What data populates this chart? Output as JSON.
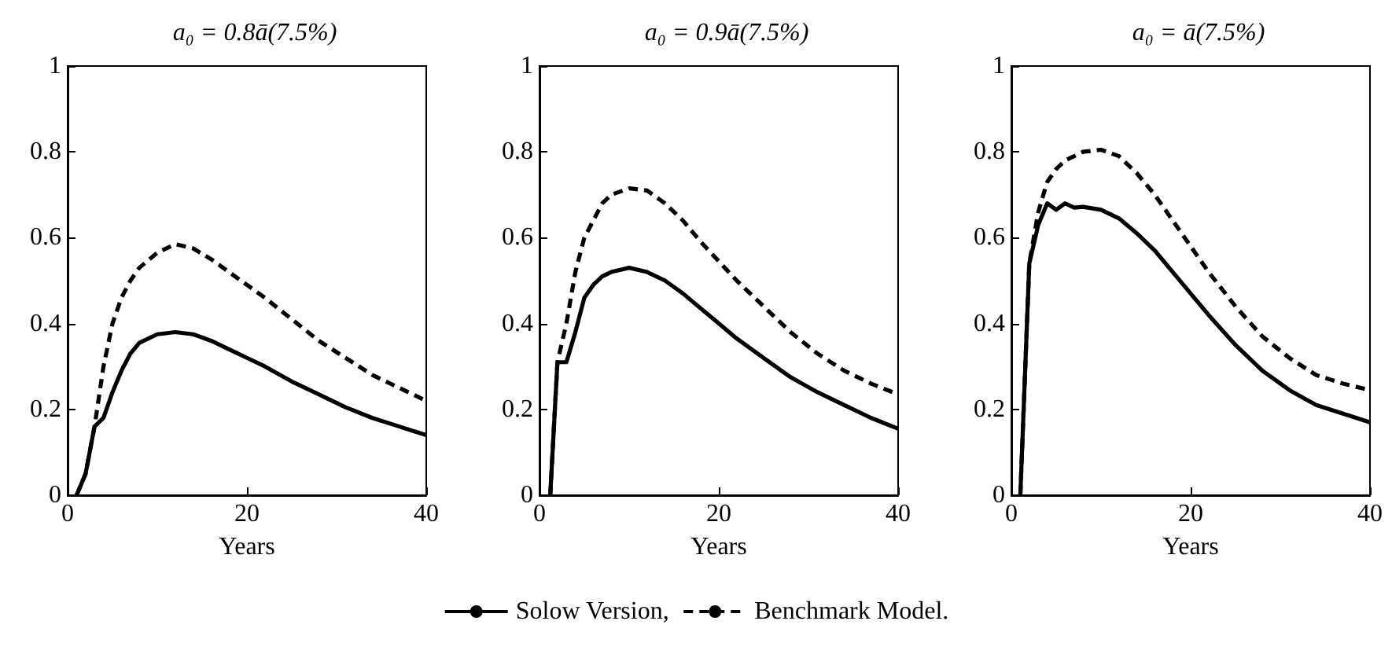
{
  "chart_data": [
    {
      "type": "line",
      "title": "a₀ = 0.8ā(7.5%)",
      "xlabel": "Years",
      "xlim": [
        0,
        40
      ],
      "xticks": [
        0,
        20,
        40
      ],
      "ylim": [
        0,
        1
      ],
      "yticks": [
        0,
        0.2,
        0.4,
        0.6,
        0.8,
        1
      ],
      "grid": false,
      "marker": "none",
      "series": [
        {
          "color": "#000000",
          "line_style": "solid",
          "x": [
            1,
            2,
            3,
            4,
            5,
            6,
            7,
            8,
            10,
            12,
            14,
            16,
            18,
            20,
            22,
            25,
            28,
            31,
            34,
            37,
            40
          ],
          "values": [
            0,
            0.05,
            0.16,
            0.18,
            0.24,
            0.29,
            0.33,
            0.355,
            0.375,
            0.38,
            0.375,
            0.36,
            0.34,
            0.32,
            0.3,
            0.265,
            0.235,
            0.205,
            0.18,
            0.16,
            0.14
          ]
        },
        {
          "color": "#000000",
          "line_style": "dashed",
          "x": [
            1,
            2,
            3,
            4,
            5,
            6,
            7,
            8,
            10,
            12,
            14,
            16,
            18,
            20,
            22,
            25,
            28,
            31,
            34,
            37,
            40
          ],
          "values": [
            0,
            0.05,
            0.16,
            0.3,
            0.4,
            0.46,
            0.5,
            0.53,
            0.565,
            0.585,
            0.575,
            0.55,
            0.52,
            0.49,
            0.46,
            0.41,
            0.36,
            0.32,
            0.28,
            0.25,
            0.22
          ]
        }
      ]
    },
    {
      "type": "line",
      "title": "a₀ = 0.9ā(7.5%)",
      "xlabel": "Years",
      "xlim": [
        0,
        40
      ],
      "xticks": [
        0,
        20,
        40
      ],
      "ylim": [
        0,
        1
      ],
      "yticks": [
        0,
        0.2,
        0.4,
        0.6,
        0.8,
        1
      ],
      "grid": false,
      "marker": "none",
      "legend": "bottom",
      "series": [
        {
          "name": "Solow Version,",
          "color": "#000000",
          "line_style": "solid",
          "x": [
            1.2,
            2,
            3,
            4,
            5,
            6,
            7,
            8,
            10,
            12,
            14,
            16,
            18,
            20,
            22,
            25,
            28,
            31,
            34,
            37,
            40
          ],
          "values": [
            0,
            0.31,
            0.31,
            0.38,
            0.46,
            0.49,
            0.51,
            0.52,
            0.53,
            0.52,
            0.5,
            0.47,
            0.435,
            0.4,
            0.365,
            0.32,
            0.275,
            0.24,
            0.21,
            0.18,
            0.155
          ]
        },
        {
          "name": "Benchmark Model.",
          "color": "#000000",
          "line_style": "dashed",
          "x": [
            1.2,
            2,
            3,
            4,
            5,
            6,
            7,
            8,
            10,
            12,
            14,
            16,
            18,
            20,
            22,
            25,
            28,
            31,
            34,
            37,
            40
          ],
          "values": [
            0,
            0.31,
            0.4,
            0.52,
            0.6,
            0.64,
            0.68,
            0.7,
            0.715,
            0.71,
            0.68,
            0.64,
            0.59,
            0.545,
            0.5,
            0.44,
            0.38,
            0.33,
            0.29,
            0.26,
            0.235
          ]
        }
      ]
    },
    {
      "type": "line",
      "title": "a₀ = ā(7.5%)",
      "xlabel": "Years",
      "xlim": [
        0,
        40
      ],
      "xticks": [
        0,
        20,
        40
      ],
      "ylim": [
        0,
        1
      ],
      "yticks": [
        0,
        0.2,
        0.4,
        0.6,
        0.8,
        1
      ],
      "grid": false,
      "marker": "none",
      "series": [
        {
          "color": "#000000",
          "line_style": "solid",
          "x": [
            1,
            2,
            3,
            4,
            5,
            6,
            7,
            8,
            10,
            12,
            14,
            16,
            18,
            20,
            22,
            25,
            28,
            31,
            34,
            37,
            40
          ],
          "values": [
            0,
            0.54,
            0.63,
            0.68,
            0.665,
            0.68,
            0.67,
            0.672,
            0.665,
            0.645,
            0.61,
            0.57,
            0.52,
            0.47,
            0.42,
            0.35,
            0.29,
            0.245,
            0.21,
            0.19,
            0.17
          ]
        },
        {
          "color": "#000000",
          "line_style": "dashed",
          "x": [
            1,
            2,
            3,
            4,
            5,
            6,
            8,
            10,
            12,
            14,
            16,
            18,
            20,
            22,
            25,
            28,
            31,
            34,
            37,
            40
          ],
          "values": [
            0,
            0.54,
            0.66,
            0.73,
            0.76,
            0.78,
            0.8,
            0.805,
            0.79,
            0.75,
            0.7,
            0.64,
            0.58,
            0.52,
            0.44,
            0.37,
            0.32,
            0.28,
            0.26,
            0.245
          ]
        }
      ]
    }
  ]
}
